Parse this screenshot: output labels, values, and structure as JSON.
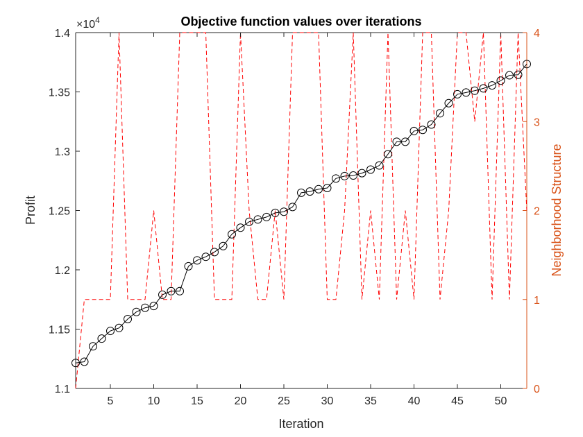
{
  "chart_data": {
    "type": "line",
    "title": "Objective function values over iterations",
    "xlabel": "Iteration",
    "ylabel": "Profit",
    "ylabel_right": "Neighborhood Structure",
    "exponent_label": "×10",
    "exponent_power": "4",
    "xlim": [
      1,
      53
    ],
    "ylim": [
      11000,
      14000
    ],
    "ylim_right": [
      0,
      4
    ],
    "x_ticks": [
      5,
      10,
      15,
      20,
      25,
      30,
      35,
      40,
      45,
      50
    ],
    "y_ticks": [
      11000,
      11500,
      12000,
      12500,
      13000,
      13500,
      14000
    ],
    "y_tick_labels": [
      "1.1",
      "1.15",
      "1.2",
      "1.25",
      "1.3",
      "1.35",
      "1.4"
    ],
    "y_right_ticks": [
      0,
      1,
      2,
      3,
      4
    ],
    "y_right_tick_labels": [
      "0",
      "1",
      "2",
      "3",
      "4"
    ],
    "grid": false,
    "legend": "none",
    "colors": {
      "profit": "#000000",
      "neighborhood": "#FF0000",
      "right_axis": "#D95319",
      "axis": "#262626"
    },
    "series": [
      {
        "axis": "left",
        "style": "solid line with open circle markers",
        "x": [
          1,
          2,
          3,
          4,
          5,
          6,
          7,
          8,
          9,
          10,
          11,
          12,
          13,
          14,
          15,
          16,
          17,
          18,
          19,
          20,
          21,
          22,
          23,
          24,
          25,
          26,
          27,
          28,
          29,
          30,
          31,
          32,
          33,
          34,
          35,
          36,
          37,
          38,
          39,
          40,
          41,
          42,
          43,
          44,
          45,
          46,
          47,
          48,
          49,
          50,
          51,
          52,
          53
        ],
        "values": [
          11215,
          11225,
          11355,
          11420,
          11485,
          11510,
          11585,
          11645,
          11680,
          11695,
          11790,
          11820,
          11820,
          12030,
          12080,
          12110,
          12150,
          12200,
          12300,
          12355,
          12405,
          12425,
          12445,
          12480,
          12490,
          12530,
          12650,
          12660,
          12680,
          12690,
          12770,
          12790,
          12795,
          12815,
          12845,
          12880,
          12975,
          13080,
          13080,
          13170,
          13180,
          13225,
          13320,
          13405,
          13480,
          13495,
          13510,
          13530,
          13555,
          13595,
          13640,
          13645,
          13735
        ]
      },
      {
        "axis": "right",
        "style": "dashed line",
        "x": [
          1,
          2,
          3,
          4,
          5,
          6,
          7,
          8,
          9,
          10,
          11,
          12,
          13,
          14,
          15,
          16,
          17,
          18,
          19,
          20,
          21,
          22,
          23,
          24,
          25,
          26,
          27,
          28,
          29,
          30,
          31,
          32,
          33,
          34,
          35,
          36,
          37,
          38,
          39,
          40,
          41,
          42,
          43,
          44,
          45,
          46,
          47,
          48,
          49,
          50,
          51,
          52,
          53
        ],
        "values": [
          0,
          1,
          1,
          1,
          1,
          4,
          1,
          1,
          1,
          2,
          1,
          1,
          4,
          4,
          4,
          4,
          1,
          1,
          1,
          4,
          2,
          1,
          1,
          2,
          1,
          4,
          4,
          4,
          4,
          1,
          1,
          2,
          4,
          1,
          2,
          1,
          4,
          1,
          2,
          1,
          4,
          4,
          1,
          2,
          4,
          4,
          3,
          4,
          1,
          4,
          1,
          4,
          2
        ]
      }
    ]
  }
}
